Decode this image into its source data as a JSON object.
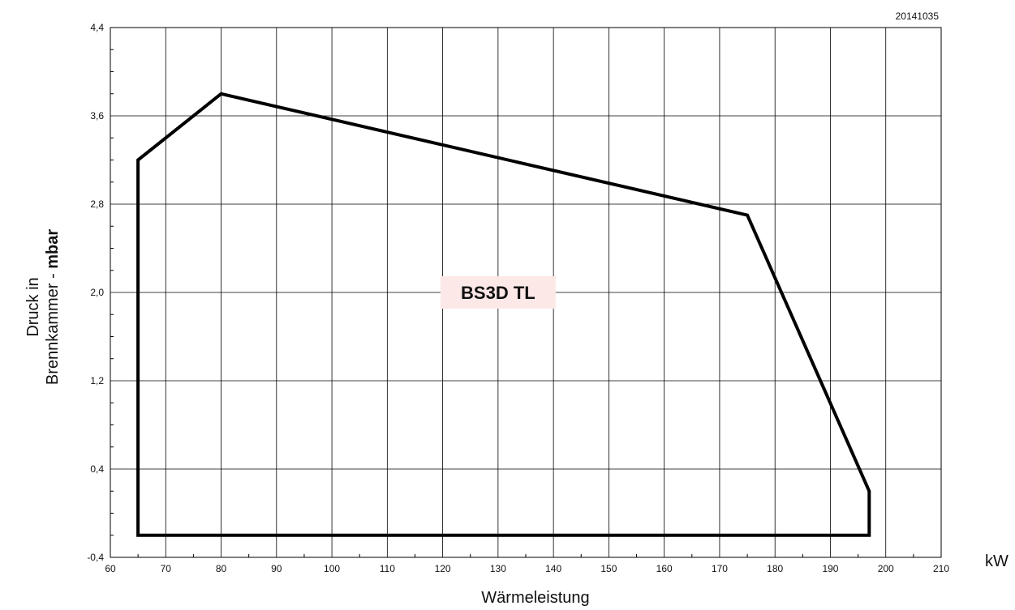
{
  "chart_data": {
    "type": "area",
    "document_code": "20141035",
    "xlabel": "Wärmeleistung",
    "x_unit": "kW",
    "ylabel_line1": "Druck in",
    "ylabel_line2_plain": "Brennkammer - ",
    "ylabel_line2_bold": "mbar",
    "xlim": [
      60,
      210
    ],
    "ylim": [
      -0.4,
      4.4
    ],
    "x_ticks": [
      60,
      70,
      80,
      90,
      100,
      110,
      120,
      130,
      140,
      150,
      160,
      170,
      180,
      190,
      200,
      210
    ],
    "x_tick_labels": [
      "60",
      "70",
      "80",
      "90",
      "100",
      "110",
      "120",
      "130",
      "140",
      "150",
      "160",
      "170",
      "180",
      "190",
      "200",
      "210"
    ],
    "y_ticks": [
      -0.4,
      0.4,
      1.2,
      2.0,
      2.8,
      3.6,
      4.4
    ],
    "y_tick_labels": [
      "-0,4",
      "0,4",
      "1,2",
      "2,0",
      "2,8",
      "3,6",
      "4,4"
    ],
    "grid": true,
    "series": [
      {
        "name": "BS3D TL",
        "closed": true,
        "points": [
          [
            65,
            -0.2
          ],
          [
            65,
            3.2
          ],
          [
            80,
            3.8
          ],
          [
            175,
            2.7
          ],
          [
            197,
            0.2
          ],
          [
            197,
            -0.2
          ]
        ]
      }
    ],
    "annotations": [
      {
        "text": "BS3D TL",
        "x": 130,
        "y": 2.0,
        "background": "#fde8e8"
      }
    ],
    "colors": {
      "outline": "#000000",
      "grid": "#000000",
      "label_background": "#fde8e8"
    }
  }
}
